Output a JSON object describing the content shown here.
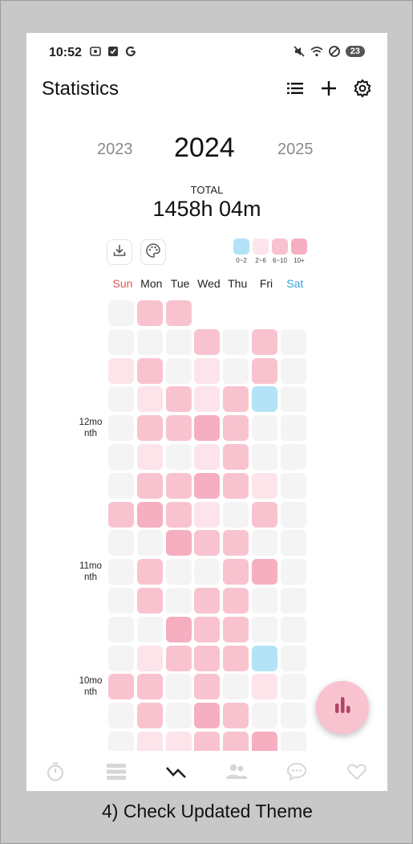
{
  "status_bar": {
    "time": "10:52",
    "left_icons": [
      "screenshot-icon",
      "checkbox-icon",
      "google-icon"
    ],
    "right_icons": [
      "mute-icon",
      "wifi-icon",
      "dnd-icon"
    ],
    "battery": "23"
  },
  "header": {
    "title": "Statistics",
    "actions": [
      "list-icon",
      "add-icon",
      "settings-icon"
    ]
  },
  "year_selector": {
    "previous": "2023",
    "current": "2024",
    "next": "2025"
  },
  "total": {
    "label": "TOTAL",
    "value": "1458h 04m"
  },
  "tools": [
    "download-icon",
    "palette-icon"
  ],
  "legend": [
    {
      "label": "0~2",
      "color": "#b3e3f7"
    },
    {
      "label": "2~6",
      "color": "#fce4ea"
    },
    {
      "label": "6~10",
      "color": "#f8c3cf"
    },
    {
      "label": "10+",
      "color": "#f6aec1"
    }
  ],
  "weekdays": [
    {
      "label": "Sun",
      "color": "#e4574f"
    },
    {
      "label": "Mon",
      "color": "#222222"
    },
    {
      "label": "Tue",
      "color": "#222222"
    },
    {
      "label": "Wed",
      "color": "#222222"
    },
    {
      "label": "Thu",
      "color": "#222222"
    },
    {
      "label": "Fri",
      "color": "#222222"
    },
    {
      "label": "Sat",
      "color": "#3aa0dc"
    }
  ],
  "heatmap": {
    "level_colors": [
      "#f4f4f4",
      "#b3e3f7",
      "#fce4ea",
      "#f8c3cf",
      "#f6aec1"
    ],
    "rows": [
      [
        0,
        3,
        3,
        -1,
        -1,
        -1,
        -1
      ],
      [
        0,
        0,
        0,
        3,
        0,
        3,
        0
      ],
      [
        2,
        3,
        0,
        2,
        0,
        3,
        0
      ],
      [
        0,
        2,
        3,
        2,
        3,
        1,
        0
      ],
      [
        0,
        3,
        3,
        4,
        3,
        0,
        0
      ],
      [
        0,
        2,
        0,
        2,
        3,
        0,
        0
      ],
      [
        0,
        3,
        3,
        4,
        3,
        2,
        0
      ],
      [
        3,
        4,
        3,
        2,
        0,
        3,
        0
      ],
      [
        0,
        0,
        4,
        3,
        3,
        0,
        0
      ],
      [
        0,
        3,
        0,
        0,
        3,
        4,
        0
      ],
      [
        0,
        3,
        0,
        3,
        3,
        0,
        0
      ],
      [
        0,
        0,
        4,
        3,
        3,
        0,
        0
      ],
      [
        0,
        2,
        3,
        3,
        3,
        1,
        0
      ],
      [
        3,
        3,
        0,
        3,
        0,
        2,
        0
      ],
      [
        0,
        3,
        0,
        4,
        3,
        0,
        0
      ],
      [
        0,
        2,
        2,
        3,
        3,
        4,
        0
      ]
    ],
    "month_labels": [
      {
        "row": 4,
        "line1": "12mo",
        "line2": "nth"
      },
      {
        "row": 9,
        "line1": "11mo",
        "line2": "nth"
      },
      {
        "row": 13,
        "line1": "10mo",
        "line2": "nth"
      }
    ]
  },
  "fab": "bar-chart-icon",
  "bottom_nav": [
    "timer-icon",
    "records-icon",
    "statistics-icon",
    "friends-icon",
    "chat-icon",
    "heart-icon"
  ],
  "caption": "4) Check Updated Theme"
}
